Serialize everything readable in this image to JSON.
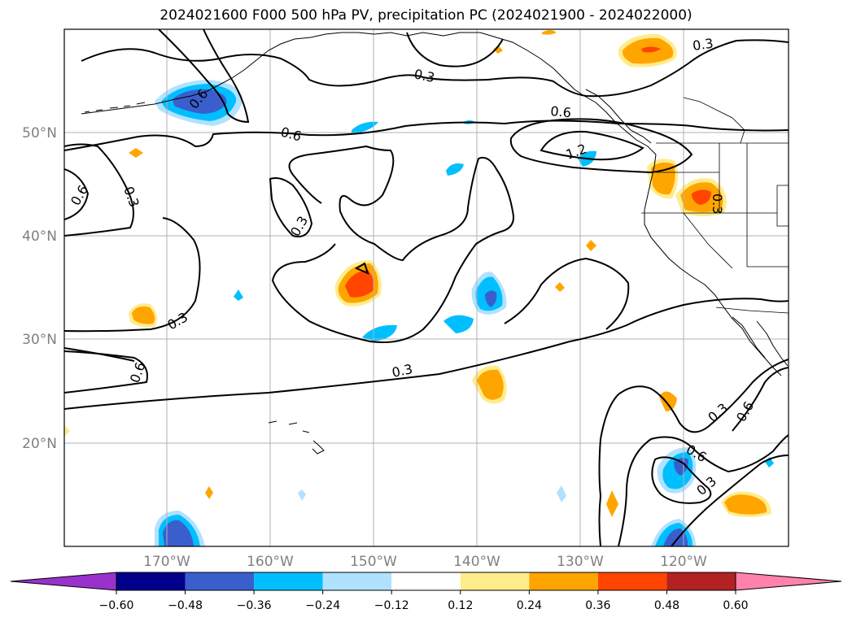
{
  "title": "2024021600 F000 500 hPa PV, precipitation PC (2024021900 - 2024022000)",
  "lat_labels": [
    "50°N",
    "40°N",
    "30°N",
    "20°N"
  ],
  "lon_labels": [
    "170°W",
    "160°W",
    "150°W",
    "140°W",
    "130°W",
    "120°W"
  ],
  "contour_labels": [
    "0.3",
    "0.3",
    "0.6",
    "0.6",
    "1.2",
    "0.6",
    "0.3",
    "0.3",
    "0.3",
    "0.6",
    "0.3",
    "0.3",
    "0.6",
    "0.3",
    "0.6",
    "0.6",
    "0.3"
  ],
  "colorbar": {
    "tick_labels": [
      "−0.60",
      "−0.48",
      "−0.36",
      "−0.24",
      "−0.12",
      "0.12",
      "0.24",
      "0.36",
      "0.48",
      "0.60"
    ],
    "colors": [
      "#9932cc",
      "#00008b",
      "#3a5fcd",
      "#00bfff",
      "#b0e2ff",
      "#ffffff",
      "#ffec8b",
      "#ffa500",
      "#ff4500",
      "#b22222",
      "#ff82ab"
    ]
  }
}
